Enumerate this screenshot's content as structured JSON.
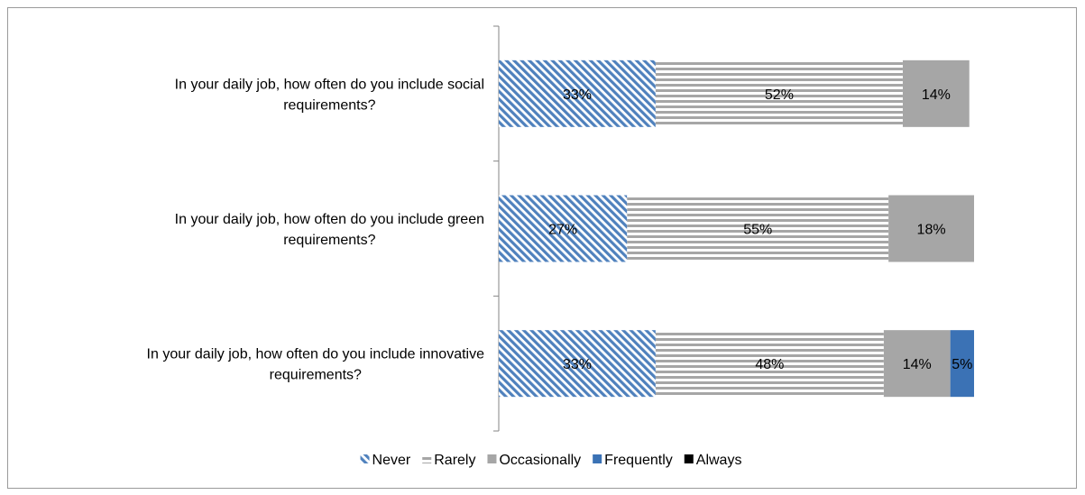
{
  "chart_data": {
    "type": "bar",
    "orientation": "horizontal",
    "stacked": "100%",
    "categories": [
      "In your daily job, how often do you include social requirements?",
      "In your daily job, how often do you include green requirements?",
      "In your daily job, how often do you include innovative requirements?"
    ],
    "category_lines": [
      [
        "In your daily job, how often do you include social",
        "requirements?"
      ],
      [
        "In your daily job, how often do you include green",
        "requirements?"
      ],
      [
        "In your daily job, how often do you include innovative",
        "requirements?"
      ]
    ],
    "series": [
      {
        "name": "Never",
        "values": [
          33,
          27,
          33
        ],
        "labels": [
          "33%",
          "27%",
          "33%"
        ],
        "color": "#4f81bd",
        "pattern": "diagonal"
      },
      {
        "name": "Rarely",
        "values": [
          52,
          55,
          48
        ],
        "labels": [
          "52%",
          "55%",
          "48%"
        ],
        "color": "#a6a6a6",
        "pattern": "horizontal"
      },
      {
        "name": "Occasionally",
        "values": [
          14,
          18,
          14
        ],
        "labels": [
          "14%",
          "18%",
          "14%"
        ],
        "color": "#a6a6a6",
        "pattern": "solid"
      },
      {
        "name": "Frequently",
        "values": [
          0,
          0,
          5
        ],
        "labels": [
          "",
          "",
          "5%"
        ],
        "color": "#3b72b5",
        "pattern": "solid"
      },
      {
        "name": "Always",
        "values": [
          0,
          0,
          0
        ],
        "labels": [
          "",
          "",
          ""
        ],
        "color": "#000000",
        "pattern": "solid"
      }
    ],
    "xlim": [
      0,
      100
    ],
    "grid": false,
    "legend_position": "bottom",
    "title": "",
    "xlabel": "",
    "ylabel": ""
  }
}
